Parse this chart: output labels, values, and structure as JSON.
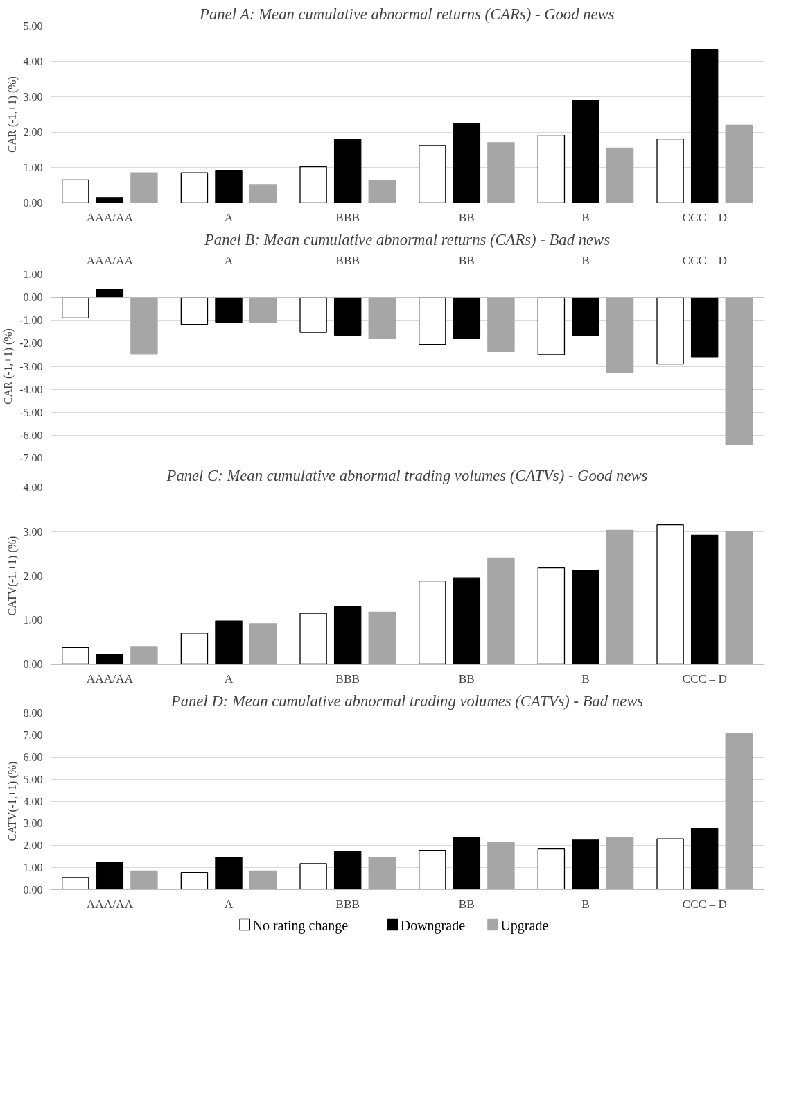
{
  "chart_data": [
    {
      "type": "bar",
      "title": "Panel A: Mean cumulative abnormal returns (CARs) - Good news",
      "ylabel": "CAR (-1,+1) (%)",
      "categories": [
        "AAA/AA",
        "A",
        "BBB",
        "BB",
        "B",
        "CCC – D"
      ],
      "series": [
        {
          "color": "#ffffff",
          "values": [
            0.65,
            0.85,
            1.02,
            1.62,
            1.92,
            1.8
          ]
        },
        {
          "color": "#000000",
          "values": [
            0.15,
            0.92,
            1.8,
            2.25,
            2.9,
            4.33
          ]
        },
        {
          "color": "#a6a6a6",
          "values": [
            0.85,
            0.52,
            0.63,
            1.7,
            1.55,
            2.2
          ]
        }
      ],
      "ylim": [
        0,
        5
      ],
      "yticks": [
        {
          "value": 0,
          "label": "0.00"
        },
        {
          "value": 1,
          "label": "1.00"
        },
        {
          "value": 2,
          "label": "2.00"
        },
        {
          "value": 3,
          "label": "3.00"
        },
        {
          "value": 4,
          "label": "4.00"
        },
        {
          "value": 5,
          "label": "5.00"
        }
      ],
      "grid": "y"
    },
    {
      "type": "bar",
      "title": "Panel B: Mean cumulative abnormal returns (CARs) - Bad news",
      "ylabel": "CAR (-1,+1) (%)",
      "categories": [
        "AAA/AA",
        "A",
        "BBB",
        "BB",
        "B",
        "CCC – D"
      ],
      "series": [
        {
          "color": "#ffffff",
          "values": [
            -0.9,
            -1.18,
            -1.52,
            -2.05,
            -2.48,
            -2.9
          ]
        },
        {
          "color": "#000000",
          "values": [
            0.35,
            -1.08,
            -1.65,
            -1.78,
            -1.65,
            -2.6
          ]
        },
        {
          "color": "#a6a6a6",
          "values": [
            -2.45,
            -1.08,
            -1.78,
            -2.35,
            -3.25,
            -6.42
          ]
        }
      ],
      "ylim": [
        -7,
        1
      ],
      "yticks": [
        {
          "value": -7,
          "label": "-7.00"
        },
        {
          "value": -6,
          "label": "-6.00"
        },
        {
          "value": -5,
          "label": "-5.00"
        },
        {
          "value": -4,
          "label": "-4.00"
        },
        {
          "value": -3,
          "label": "-3.00"
        },
        {
          "value": -2,
          "label": "-2.00"
        },
        {
          "value": -1,
          "label": "-1.00"
        },
        {
          "value": 0,
          "label": "0.00"
        },
        {
          "value": 1,
          "label": "1.00"
        }
      ],
      "grid": "y"
    },
    {
      "type": "bar",
      "title": "Panel C: Mean cumulative abnormal trading volumes (CATVs) - Good news",
      "ylabel": "CATV(-1,+1) (%)",
      "categories": [
        "AAA/AA",
        "A",
        "BBB",
        "BB",
        "B",
        "CCC – D"
      ],
      "series": [
        {
          "color": "#ffffff",
          "values": [
            0.38,
            0.7,
            1.15,
            1.88,
            2.18,
            3.15
          ]
        },
        {
          "color": "#000000",
          "values": [
            0.22,
            0.98,
            1.3,
            1.95,
            2.13,
            2.92
          ]
        },
        {
          "color": "#a6a6a6",
          "values": [
            0.4,
            0.92,
            1.18,
            2.4,
            3.03,
            3.0
          ]
        }
      ],
      "ylim": [
        0,
        4
      ],
      "yticks": [
        {
          "value": 0,
          "label": "0.00"
        },
        {
          "value": 1,
          "label": "1.00"
        },
        {
          "value": 2,
          "label": "2.00"
        },
        {
          "value": 3,
          "label": "3.00"
        },
        {
          "value": 4,
          "label": "4.00"
        }
      ],
      "grid": "y"
    },
    {
      "type": "bar",
      "title": "Panel D: Mean cumulative abnormal trading volumes (CATVs) - Bad news",
      "ylabel": "CATV(-1,+1) (%)",
      "categories": [
        "AAA/AA",
        "A",
        "BBB",
        "BB",
        "B",
        "CCC – D"
      ],
      "series": [
        {
          "name": "No rating change",
          "color": "#ffffff",
          "values": [
            0.55,
            0.78,
            1.18,
            1.78,
            1.85,
            2.3
          ]
        },
        {
          "name": "Downgrade",
          "color": "#000000",
          "values": [
            1.25,
            1.45,
            1.73,
            2.37,
            2.25,
            2.78
          ]
        },
        {
          "name": "Upgrade",
          "color": "#a6a6a6",
          "values": [
            0.85,
            0.85,
            1.45,
            2.15,
            2.38,
            7.08
          ]
        }
      ],
      "ylim": [
        0,
        8
      ],
      "yticks": [
        {
          "value": 0,
          "label": "0.00"
        },
        {
          "value": 1,
          "label": "1.00"
        },
        {
          "value": 2,
          "label": "2.00"
        },
        {
          "value": 3,
          "label": "3.00"
        },
        {
          "value": 4,
          "label": "4.00"
        },
        {
          "value": 5,
          "label": "5.00"
        },
        {
          "value": 6,
          "label": "6.00"
        },
        {
          "value": 7,
          "label": "7.00"
        },
        {
          "value": 8,
          "label": "8.00"
        }
      ],
      "grid": "y",
      "legend": "bottom"
    }
  ]
}
